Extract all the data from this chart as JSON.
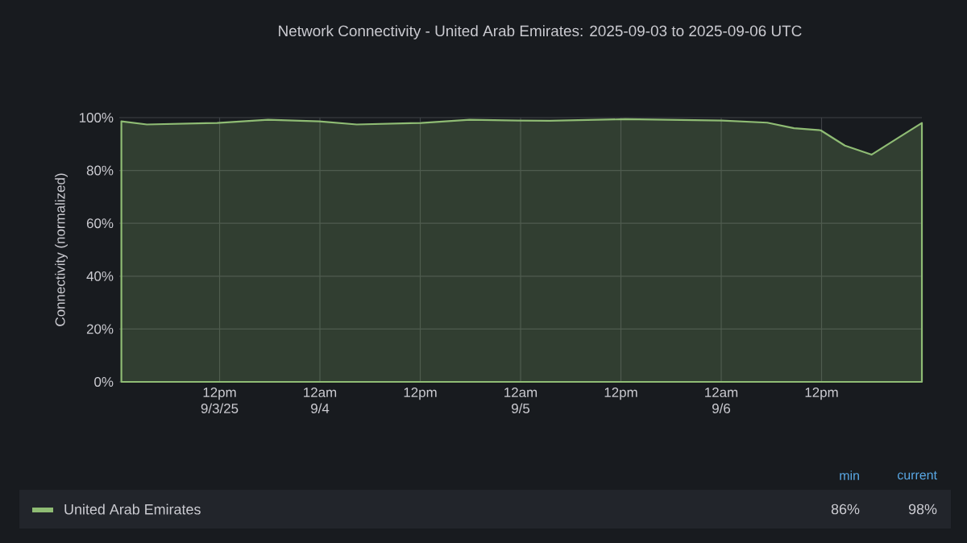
{
  "chart_data": {
    "type": "area",
    "title": "Network Connectivity - United Arab Emirates: 2025-09-03 to 2025-09-06 UTC",
    "ylabel": "Connectivity (normalized)",
    "x": [
      "2025-09-03T00:15",
      "2025-09-03T03:18",
      "2025-09-03T11:42",
      "2025-09-03T17:48",
      "2025-09-03T23:54",
      "2025-09-04T04:24",
      "2025-09-04T12:06",
      "2025-09-04T17:54",
      "2025-09-04T23:42",
      "2025-09-05T03:30",
      "2025-09-05T12:30",
      "2025-09-06T00:06",
      "2025-09-06T05:30",
      "2025-09-06T08:42",
      "2025-09-06T11:54",
      "2025-09-06T14:48",
      "2025-09-06T18:00",
      "2025-09-06T21:12",
      "2025-09-07T00:00"
    ],
    "series": [
      {
        "name": "United Arab Emirates",
        "color": "#8fbc74",
        "values": [
          98.6,
          97.4,
          98,
          99.2,
          98.6,
          97.4,
          98,
          99.2,
          98.9,
          98.8,
          99.4,
          98.9,
          98.1,
          96.0,
          95.2,
          89.4,
          86,
          92.4,
          98
        ]
      }
    ],
    "xlim": [
      "2025-09-03T00:00",
      "2025-09-07T00:00"
    ],
    "ylim": [
      0,
      100
    ],
    "xticks": [
      {
        "value": "2025-09-03T12:00",
        "label": "12pm 9/3/25"
      },
      {
        "value": "2025-09-04T00:00",
        "label": "12am 9/4"
      },
      {
        "value": "2025-09-04T12:00",
        "label": "12pm"
      },
      {
        "value": "2025-09-05T00:00",
        "label": "12am 9/5"
      },
      {
        "value": "2025-09-05T12:00",
        "label": "12pm"
      },
      {
        "value": "2025-09-06T00:00",
        "label": "12am 9/6"
      },
      {
        "value": "2025-09-06T12:00",
        "label": "12pm"
      }
    ],
    "yticks": [
      {
        "value": 0,
        "label": "0%"
      },
      {
        "value": 20,
        "label": "20%"
      },
      {
        "value": 40,
        "label": "40%"
      },
      {
        "value": 60,
        "label": "60%"
      },
      {
        "value": 80,
        "label": "80%"
      },
      {
        "value": 100,
        "label": "100%"
      }
    ],
    "grid": true,
    "legend": "bottom",
    "annotations": [
      "min",
      "current",
      "86%",
      "98%"
    ]
  }
}
